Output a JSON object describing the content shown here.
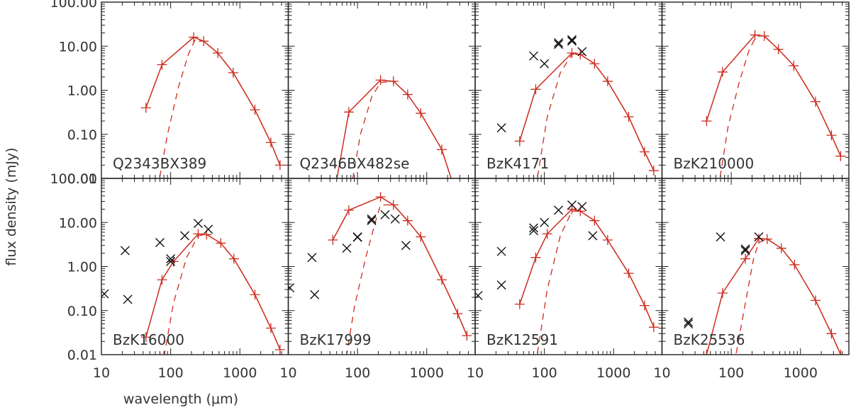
{
  "chart_data": {
    "type": "scatter",
    "xlabel": "wavelength (μm)",
    "ylabel": "flux density (mJy)",
    "xscale": "log",
    "yscale": "log",
    "xlim": [
      10,
      5000
    ],
    "ylim": [
      0.01,
      100
    ],
    "xticks": [
      10,
      100,
      1000
    ],
    "xtick_labels": [
      "10",
      "100",
      "1000"
    ],
    "yticks": [
      100,
      10,
      1,
      0.1,
      0.01
    ],
    "ytick_labels": [
      "100.00",
      "10.00",
      "1.00",
      "0.10",
      "0.01"
    ],
    "grid": false,
    "colors": {
      "model": "#cc2b1d",
      "obs": "#111111",
      "axes": "#222222"
    },
    "panels": [
      {
        "name": "Q2343BX389",
        "model": [
          [
            44,
            0.4
          ],
          [
            75,
            3.8
          ],
          [
            215,
            16
          ],
          [
            300,
            13
          ],
          [
            480,
            7
          ],
          [
            800,
            2.5
          ],
          [
            1650,
            0.36
          ],
          [
            2800,
            0.065
          ],
          [
            3800,
            0.02
          ]
        ],
        "component": [
          [
            65,
            0.006
          ],
          [
            90,
            0.1
          ],
          [
            130,
            1.2
          ],
          [
            180,
            6.5
          ],
          [
            230,
            15
          ],
          [
            300,
            13
          ],
          [
            480,
            7
          ],
          [
            800,
            2.5
          ],
          [
            1650,
            0.36
          ],
          [
            2800,
            0.065
          ],
          [
            3800,
            0.02
          ]
        ],
        "obs": []
      },
      {
        "name": "Q2346BX482se",
        "model": [
          [
            44,
            0.003
          ],
          [
            75,
            0.32
          ],
          [
            215,
            1.7
          ],
          [
            330,
            1.6
          ],
          [
            530,
            0.8
          ],
          [
            820,
            0.3
          ],
          [
            1650,
            0.045
          ],
          [
            2500,
            0.006
          ]
        ],
        "component": [
          [
            75,
            0.003
          ],
          [
            110,
            0.1
          ],
          [
            160,
            0.7
          ],
          [
            215,
            1.5
          ],
          [
            330,
            1.6
          ],
          [
            530,
            0.8
          ],
          [
            820,
            0.3
          ],
          [
            1650,
            0.045
          ],
          [
            2500,
            0.006
          ]
        ],
        "obs": []
      },
      {
        "name": "BzK4171",
        "model": [
          [
            44,
            0.07
          ],
          [
            75,
            1.05
          ],
          [
            250,
            7
          ],
          [
            330,
            6.5
          ],
          [
            530,
            4
          ],
          [
            820,
            1.6
          ],
          [
            1650,
            0.25
          ],
          [
            2800,
            0.04
          ],
          [
            3800,
            0.015
          ]
        ],
        "component": [
          [
            75,
            0.006
          ],
          [
            110,
            0.25
          ],
          [
            170,
            2.5
          ],
          [
            250,
            6.5
          ],
          [
            330,
            6.5
          ],
          [
            530,
            4
          ],
          [
            820,
            1.6
          ],
          [
            1650,
            0.25
          ],
          [
            2800,
            0.04
          ],
          [
            3800,
            0.015
          ]
        ],
        "obs": [
          [
            24,
            0.14
          ],
          [
            70,
            6
          ],
          [
            100,
            4
          ],
          [
            160,
            11
          ],
          [
            160,
            12
          ],
          [
            250,
            13
          ],
          [
            250,
            14
          ],
          [
            350,
            7.5
          ]
        ]
      },
      {
        "name": "BzK210000",
        "model": [
          [
            44,
            0.2
          ],
          [
            75,
            2.6
          ],
          [
            220,
            18
          ],
          [
            300,
            17
          ],
          [
            480,
            8.5
          ],
          [
            800,
            3.6
          ],
          [
            1650,
            0.55
          ],
          [
            2800,
            0.095
          ],
          [
            3800,
            0.032
          ]
        ],
        "component": [
          [
            65,
            0.006
          ],
          [
            90,
            0.15
          ],
          [
            130,
            1.5
          ],
          [
            180,
            8
          ],
          [
            230,
            17
          ],
          [
            300,
            17
          ],
          [
            480,
            8.5
          ],
          [
            800,
            3.6
          ],
          [
            1650,
            0.55
          ],
          [
            2800,
            0.095
          ],
          [
            3800,
            0.032
          ]
        ],
        "obs": []
      },
      {
        "name": "BzK16000",
        "model": [
          [
            44,
            0.025
          ],
          [
            75,
            0.5
          ],
          [
            110,
            1.3
          ],
          [
            250,
            5.5
          ],
          [
            330,
            5.3
          ],
          [
            530,
            3.4
          ],
          [
            820,
            1.5
          ],
          [
            1650,
            0.23
          ],
          [
            2800,
            0.04
          ],
          [
            3800,
            0.013
          ]
        ],
        "component": [
          [
            75,
            0.005
          ],
          [
            110,
            0.15
          ],
          [
            170,
            1.6
          ],
          [
            250,
            5
          ],
          [
            330,
            5.3
          ],
          [
            530,
            3.4
          ],
          [
            820,
            1.5
          ],
          [
            1650,
            0.23
          ],
          [
            2800,
            0.04
          ],
          [
            3800,
            0.013
          ]
        ],
        "obs": [
          [
            11,
            0.24
          ],
          [
            22,
            2.3
          ],
          [
            24,
            0.18
          ],
          [
            70,
            3.5
          ],
          [
            100,
            1.5
          ],
          [
            100,
            1.3
          ],
          [
            160,
            5
          ],
          [
            250,
            9.5
          ],
          [
            350,
            7
          ]
        ]
      },
      {
        "name": "BzK17999",
        "model": [
          [
            44,
            4
          ],
          [
            75,
            19
          ],
          [
            215,
            38
          ],
          [
            330,
            25
          ],
          [
            530,
            11
          ],
          [
            820,
            4.7
          ],
          [
            1650,
            0.5
          ],
          [
            2800,
            0.085
          ],
          [
            3800,
            0.027
          ]
        ],
        "component": [
          [
            65,
            0.005
          ],
          [
            90,
            0.12
          ],
          [
            130,
            1.5
          ],
          [
            180,
            10
          ],
          [
            215,
            25
          ],
          [
            330,
            25
          ],
          [
            530,
            11
          ],
          [
            820,
            4.7
          ],
          [
            1650,
            0.5
          ],
          [
            2800,
            0.085
          ],
          [
            3800,
            0.027
          ]
        ],
        "obs": [
          [
            10.5,
            0.33
          ],
          [
            22,
            1.6
          ],
          [
            24,
            0.23
          ],
          [
            70,
            2.6
          ],
          [
            100,
            4.7
          ],
          [
            100,
            4.6
          ],
          [
            160,
            12
          ],
          [
            160,
            11
          ],
          [
            250,
            15
          ],
          [
            350,
            12
          ],
          [
            500,
            3
          ]
        ]
      },
      {
        "name": "BzK12591",
        "model": [
          [
            44,
            0.14
          ],
          [
            75,
            1.6
          ],
          [
            110,
            5.5
          ],
          [
            250,
            20
          ],
          [
            330,
            18
          ],
          [
            530,
            11
          ],
          [
            820,
            4
          ],
          [
            1650,
            0.7
          ],
          [
            2800,
            0.13
          ],
          [
            3800,
            0.042
          ]
        ],
        "component": [
          [
            75,
            0.006
          ],
          [
            110,
            0.3
          ],
          [
            170,
            5
          ],
          [
            250,
            18
          ],
          [
            330,
            18
          ],
          [
            530,
            11
          ],
          [
            820,
            4
          ],
          [
            1650,
            0.7
          ],
          [
            2800,
            0.13
          ],
          [
            3800,
            0.042
          ]
        ],
        "obs": [
          [
            11,
            0.22
          ],
          [
            24,
            2.2
          ],
          [
            24,
            0.38
          ],
          [
            70,
            7.5
          ],
          [
            70,
            6.5
          ],
          [
            100,
            10
          ],
          [
            160,
            19
          ],
          [
            250,
            25
          ],
          [
            350,
            23
          ],
          [
            500,
            5
          ]
        ]
      },
      {
        "name": "BzK25536",
        "model": [
          [
            44,
            0.01
          ],
          [
            75,
            0.25
          ],
          [
            160,
            1.5
          ],
          [
            250,
            4.3
          ],
          [
            330,
            4.2
          ],
          [
            530,
            2.6
          ],
          [
            820,
            1.1
          ],
          [
            1650,
            0.17
          ],
          [
            2800,
            0.03
          ],
          [
            3800,
            0.01
          ]
        ],
        "component": [
          [
            110,
            0.006
          ],
          [
            160,
            0.15
          ],
          [
            210,
            1.5
          ],
          [
            250,
            3.5
          ],
          [
            330,
            4.2
          ],
          [
            530,
            2.6
          ],
          [
            820,
            1.1
          ],
          [
            1650,
            0.17
          ],
          [
            2800,
            0.03
          ],
          [
            3800,
            0.01
          ]
        ],
        "obs": [
          [
            24,
            0.055
          ],
          [
            24,
            0.05
          ],
          [
            70,
            4.7
          ],
          [
            160,
            2.3
          ],
          [
            160,
            2.5
          ],
          [
            250,
            4.7
          ]
        ]
      }
    ]
  }
}
